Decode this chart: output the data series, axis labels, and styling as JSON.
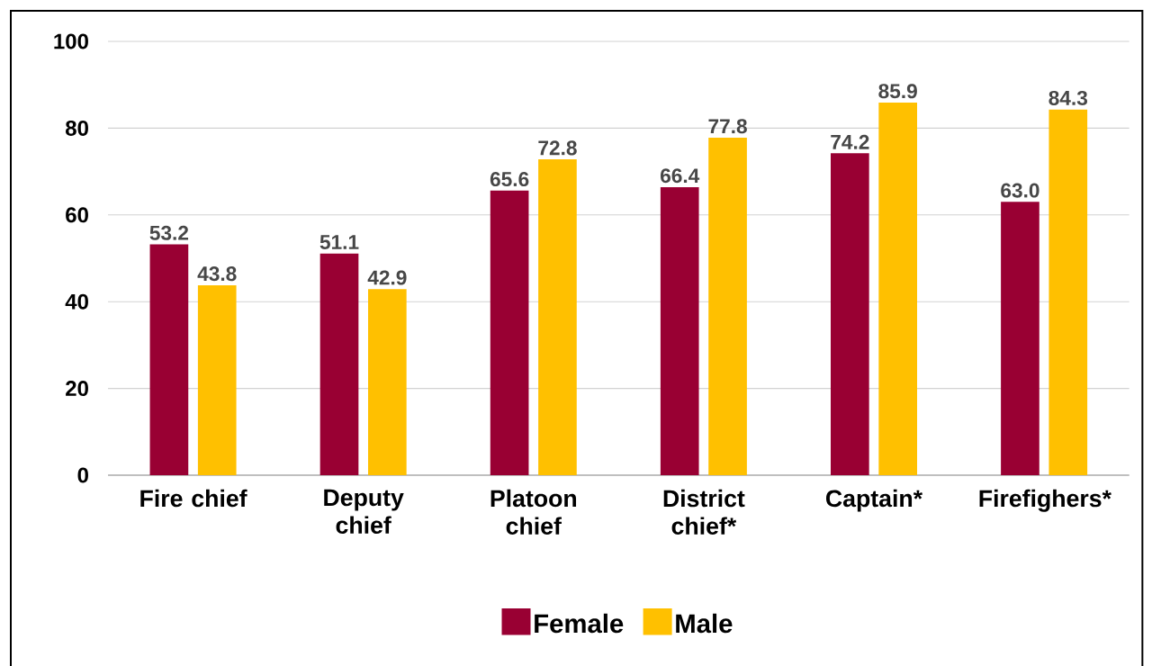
{
  "chart_data": {
    "type": "bar",
    "categories": [
      "Fire chief",
      "Deputy chief",
      "Platoon chief",
      "District chief*",
      "Captain*",
      "Firefighers*"
    ],
    "series": [
      {
        "name": "Female",
        "color": "#990033",
        "values": [
          53.2,
          51.1,
          65.6,
          66.4,
          74.2,
          63.0
        ],
        "value_labels": [
          "53.2",
          "51.1",
          "65.6",
          "66.4",
          "74.2",
          "63.0"
        ]
      },
      {
        "name": "Male",
        "color": "#ffc000",
        "values": [
          43.8,
          42.9,
          72.8,
          77.8,
          85.9,
          84.3
        ],
        "value_labels": [
          "43.8",
          "42.9",
          "72.8",
          "77.8",
          "85.9",
          "84.3"
        ]
      }
    ],
    "ylim": [
      0,
      100
    ],
    "yticks": [
      0,
      20,
      40,
      60,
      80,
      100
    ],
    "grid": "y",
    "legend": "bottom"
  }
}
